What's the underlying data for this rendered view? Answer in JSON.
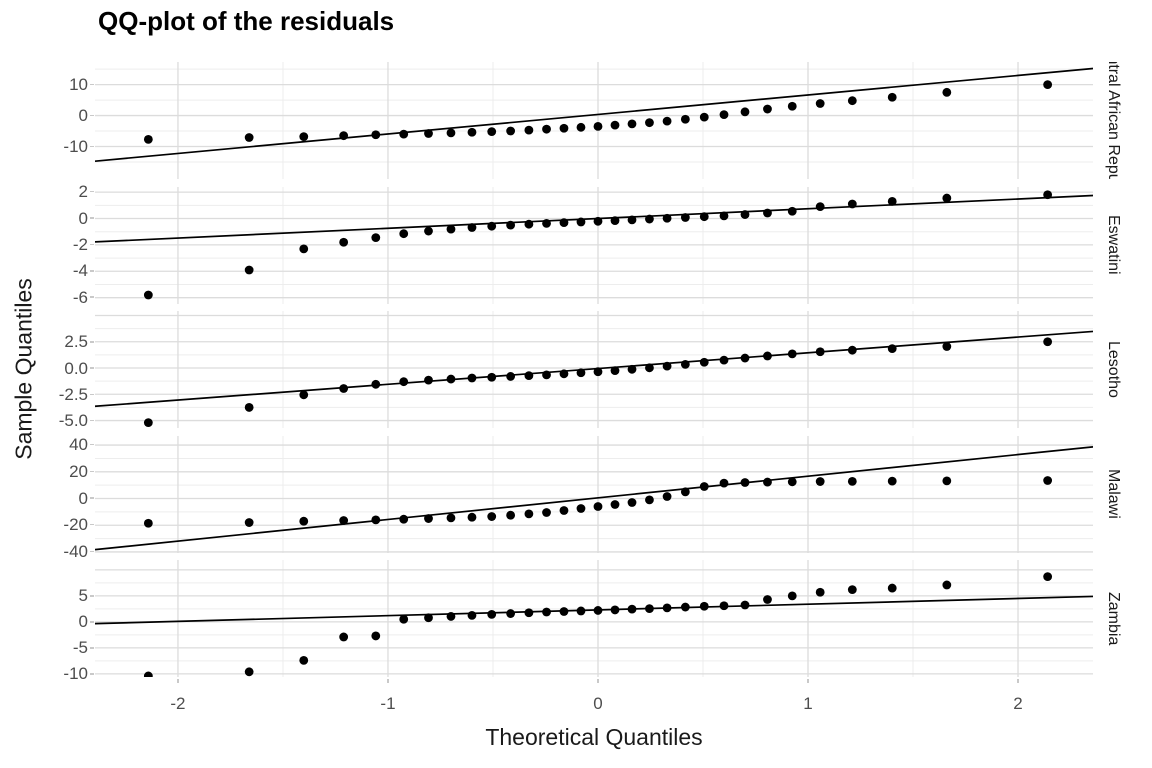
{
  "colors": {
    "background": "#ffffff",
    "grid_major": "#dcdcdc",
    "grid_minor": "#ededed",
    "point": "#000000",
    "qq_line": "#000000",
    "tick_mark": "#c9c9c9",
    "tick_text": "#4d4d4d",
    "title_text": "#000000",
    "axis_title_text": "#1a1a1a",
    "strip_text": "#1a1a1a"
  },
  "chart_data": {
    "type": "scatter",
    "subtype": "faceted-qq-plot",
    "title": "QQ-plot of the residuals",
    "xlabel": "Theoretical Quantiles",
    "ylabel": "Sample Quantiles",
    "grid": "on",
    "x": {
      "range": [
        -2.395,
        2.357
      ],
      "ticks": [
        {
          "v": -2,
          "label": "-2"
        },
        {
          "v": -1,
          "label": "-1"
        },
        {
          "v": 0,
          "label": "0"
        },
        {
          "v": 1,
          "label": "1"
        },
        {
          "v": 2,
          "label": "2"
        }
      ],
      "minor": [
        -1.5,
        -0.5,
        0.5,
        1.5
      ]
    },
    "theoretical_quantiles": [
      -2.141,
      -1.661,
      -1.401,
      -1.211,
      -1.058,
      -0.925,
      -0.807,
      -0.7,
      -0.6,
      -0.506,
      -0.416,
      -0.329,
      -0.245,
      -0.162,
      -0.081,
      0.0,
      0.081,
      0.162,
      0.245,
      0.329,
      0.416,
      0.506,
      0.6,
      0.7,
      0.807,
      0.925,
      1.058,
      1.211,
      1.401,
      1.661,
      2.141
    ],
    "facets": [
      {
        "name": "Central African Republic",
        "y_range": [
          -20.5,
          17.3
        ],
        "grid_major": [
          10,
          0,
          -10
        ],
        "grid_minor": [
          15,
          5,
          -5,
          -15
        ],
        "y_ticks": [
          {
            "v": 10,
            "label": "10"
          },
          {
            "v": 0,
            "label": "0"
          },
          {
            "v": -10,
            "label": "-10"
          }
        ],
        "line": {
          "intercept": 0.35,
          "slope": 6.3
        },
        "sample_quantiles": [
          -7.7,
          -7.1,
          -6.8,
          -6.5,
          -6.2,
          -6.0,
          -5.8,
          -5.6,
          -5.4,
          -5.2,
          -5.0,
          -4.7,
          -4.4,
          -4.1,
          -3.8,
          -3.5,
          -3.1,
          -2.7,
          -2.3,
          -1.8,
          -1.2,
          -0.5,
          0.3,
          1.2,
          2.1,
          3.0,
          3.9,
          4.8,
          5.9,
          7.5,
          10.0
        ]
      },
      {
        "name": "Eswatini",
        "y_range": [
          -6.48,
          2.39
        ],
        "grid_major": [
          2,
          0,
          -2,
          -4,
          -6
        ],
        "grid_minor": [
          1,
          -1,
          -3,
          -5
        ],
        "y_ticks": [
          {
            "v": 2,
            "label": "2"
          },
          {
            "v": 0,
            "label": "0"
          },
          {
            "v": -2,
            "label": "-2"
          },
          {
            "v": -4,
            "label": "-4"
          },
          {
            "v": -6,
            "label": "-6"
          }
        ],
        "line": {
          "intercept": 0.0,
          "slope": 0.74
        },
        "sample_quantiles": [
          -5.8,
          -3.9,
          -2.3,
          -1.8,
          -1.45,
          -1.15,
          -0.95,
          -0.8,
          -0.68,
          -0.58,
          -0.5,
          -0.43,
          -0.37,
          -0.31,
          -0.26,
          -0.21,
          -0.16,
          -0.1,
          -0.04,
          0.02,
          0.08,
          0.14,
          0.2,
          0.3,
          0.42,
          0.55,
          0.9,
          1.1,
          1.3,
          1.55,
          1.8
        ]
      },
      {
        "name": "Lesotho",
        "y_range": [
          -5.71,
          5.43
        ],
        "grid_major": [
          5,
          2.5,
          0,
          -2.5,
          -5
        ],
        "grid_minor": [
          3.75,
          1.25,
          -1.25,
          -3.75
        ],
        "y_ticks": [
          {
            "v": 2.5,
            "label": "2.5"
          },
          {
            "v": 0,
            "label": "0.0"
          },
          {
            "v": -2.5,
            "label": "-2.5"
          },
          {
            "v": -5,
            "label": "-5.0"
          }
        ],
        "line": {
          "intercept": -0.05,
          "slope": 1.5
        },
        "sample_quantiles": [
          -5.2,
          -3.75,
          -2.55,
          -1.95,
          -1.55,
          -1.3,
          -1.15,
          -1.05,
          -0.95,
          -0.88,
          -0.8,
          -0.72,
          -0.65,
          -0.55,
          -0.45,
          -0.35,
          -0.25,
          -0.12,
          0.02,
          0.18,
          0.35,
          0.55,
          0.75,
          0.95,
          1.15,
          1.35,
          1.55,
          1.7,
          1.85,
          2.05,
          2.5
        ]
      },
      {
        "name": "Malawi",
        "y_range": [
          -40.8,
          46.8
        ],
        "grid_major": [
          40,
          20,
          0,
          -20,
          -40
        ],
        "grid_minor": [
          30,
          10,
          -10,
          -30
        ],
        "y_ticks": [
          {
            "v": 40,
            "label": "40"
          },
          {
            "v": 20,
            "label": "20"
          },
          {
            "v": 0,
            "label": "0"
          },
          {
            "v": -20,
            "label": "-20"
          },
          {
            "v": -40,
            "label": "-40"
          }
        ],
        "line": {
          "intercept": 0.5,
          "slope": 16.2
        },
        "sample_quantiles": [
          -18.5,
          -18,
          -17,
          -16.5,
          -16,
          -15.5,
          -15,
          -14.5,
          -14,
          -13.5,
          -12.5,
          -11.5,
          -10.5,
          -9,
          -7.5,
          -6,
          -4.5,
          -3,
          -1,
          1.5,
          5,
          9,
          11.5,
          12,
          12.3,
          12.5,
          12.7,
          12.8,
          13,
          13.2,
          13.5
        ]
      },
      {
        "name": "Zambia",
        "y_range": [
          -10.6,
          11.9
        ],
        "grid_major": [
          10,
          5,
          0,
          -5,
          -10
        ],
        "grid_minor": [
          7.5,
          2.5,
          -2.5,
          -7.5
        ],
        "y_ticks": [
          {
            "v": 5,
            "label": "5"
          },
          {
            "v": 0,
            "label": "0"
          },
          {
            "v": -5,
            "label": "-5"
          },
          {
            "v": -10,
            "label": "-10"
          }
        ],
        "line": {
          "intercept": 2.3,
          "slope": 1.1
        },
        "sample_quantiles": [
          -10.4,
          -9.6,
          -7.4,
          -2.9,
          -2.7,
          0.5,
          0.8,
          1.05,
          1.25,
          1.45,
          1.6,
          1.75,
          1.9,
          2.0,
          2.1,
          2.2,
          2.3,
          2.45,
          2.55,
          2.7,
          2.85,
          3.0,
          3.1,
          3.25,
          4.3,
          5.0,
          5.7,
          6.2,
          6.5,
          7.1,
          8.7
        ]
      }
    ]
  }
}
